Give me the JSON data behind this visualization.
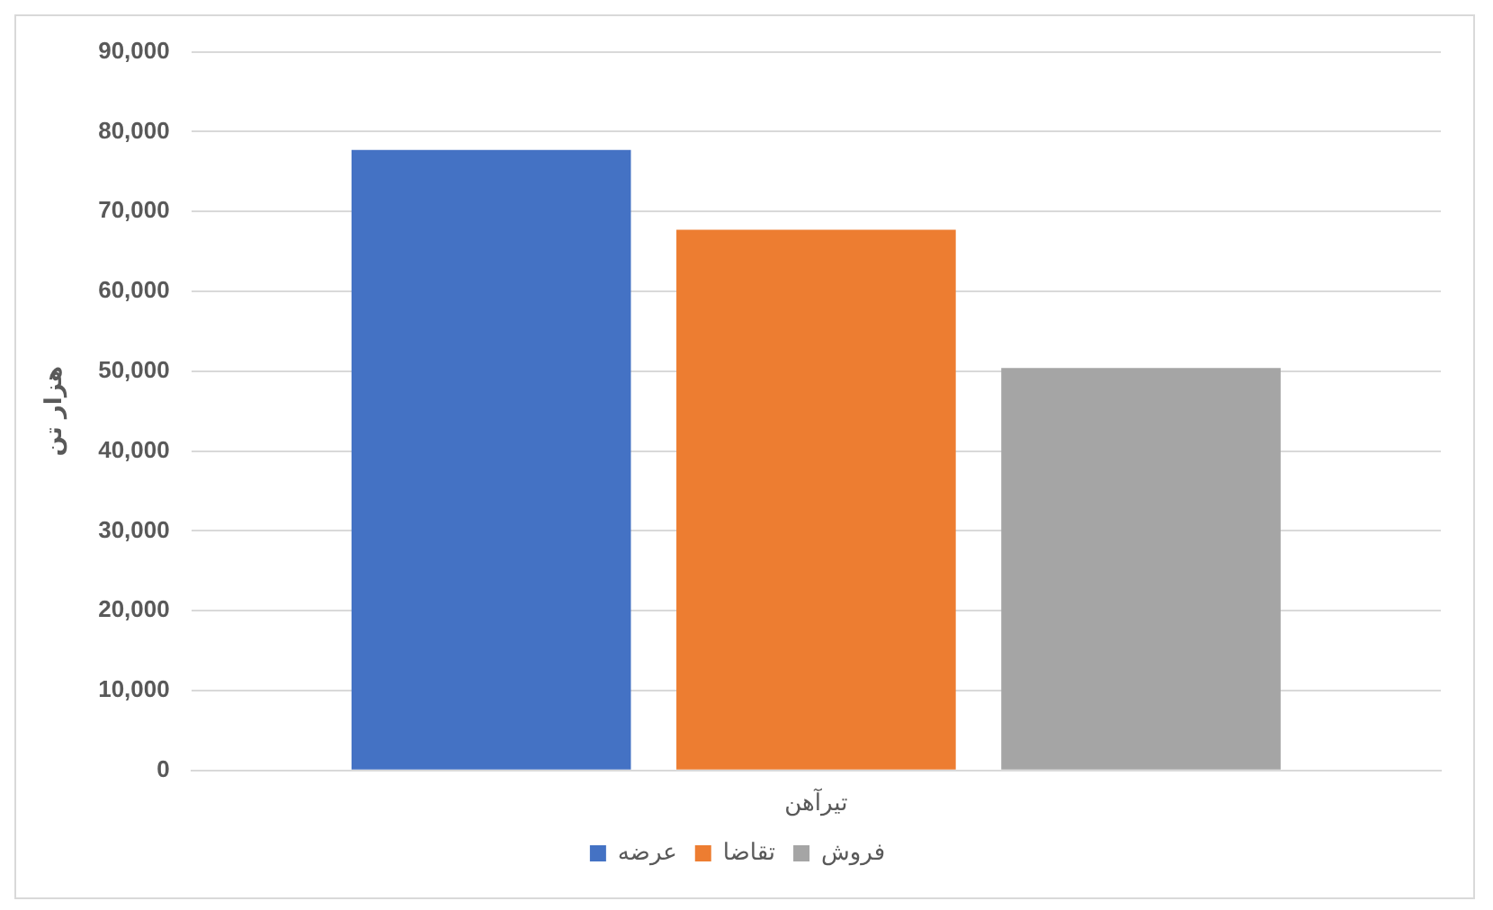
{
  "chart_data": {
    "type": "bar",
    "categories": [
      "تیرآهن"
    ],
    "series": [
      {
        "name": "عرضه",
        "color": "#4472c4",
        "values": [
          77700
        ]
      },
      {
        "name": "تقاضا",
        "color": "#ed7d31",
        "values": [
          67700
        ]
      },
      {
        "name": "فروش",
        "color": "#a5a5a5",
        "values": [
          50400
        ]
      }
    ],
    "ylabel": "هزار تن",
    "ylim": [
      0,
      90000
    ],
    "yticks": [
      {
        "value": 0,
        "label": "0"
      },
      {
        "value": 10000,
        "label": "10,000"
      },
      {
        "value": 20000,
        "label": "20,000"
      },
      {
        "value": 30000,
        "label": "30,000"
      },
      {
        "value": 40000,
        "label": "40,000"
      },
      {
        "value": 50000,
        "label": "50,000"
      },
      {
        "value": 60000,
        "label": "60,000"
      },
      {
        "value": 70000,
        "label": "70,000"
      },
      {
        "value": 80000,
        "label": "80,000"
      },
      {
        "value": 90000,
        "label": "90,000"
      }
    ],
    "grid": "y",
    "legend": "bottom"
  }
}
